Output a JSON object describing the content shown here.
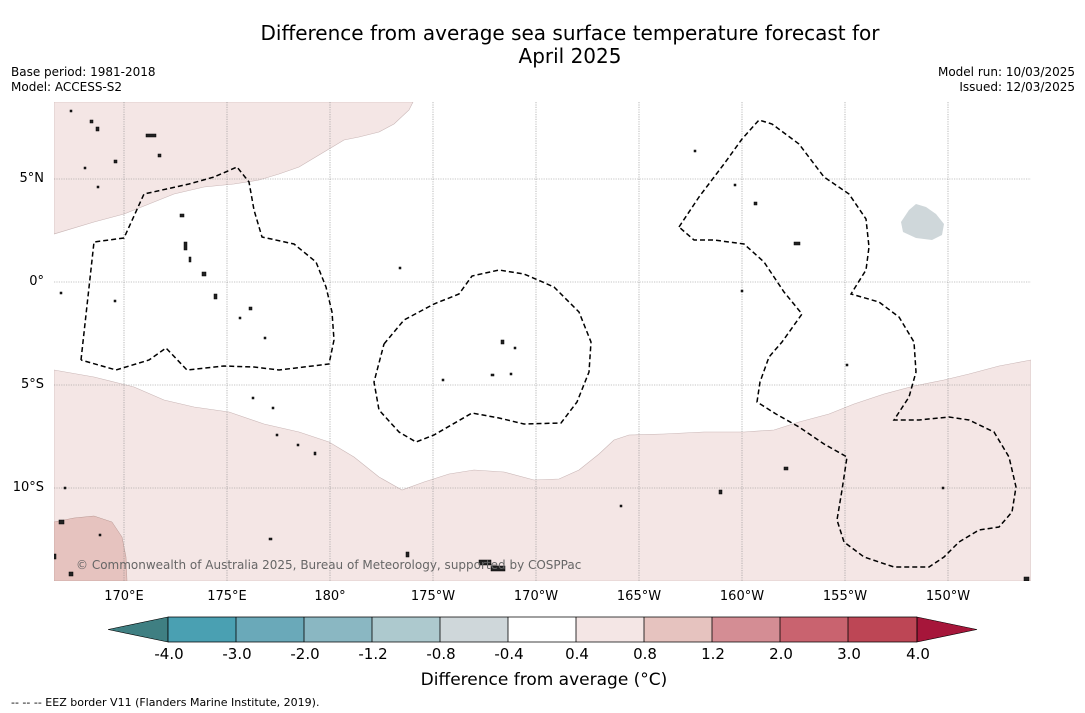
{
  "title": {
    "line1": "Difference from average sea surface temperature forecast for",
    "line2": "April 2025"
  },
  "meta_left": {
    "base_period": "Base period: 1981-2018",
    "model": "Model: ACCESS-S2"
  },
  "meta_right": {
    "model_run": "Model run: 10/03/2025",
    "issued": "Issued: 12/03/2025"
  },
  "map": {
    "lat_labels": [
      "5°N",
      "0°",
      "5°S",
      "10°S"
    ],
    "lon_labels": [
      "170°E",
      "175°E",
      "180°",
      "175°W",
      "170°W",
      "165°W",
      "160°W",
      "155°W",
      "150°W"
    ],
    "copyright": "© Commonwealth of Australia 2025, Bureau of Meteorology, supported by COSPPac",
    "colors": {
      "anomaly_0_4_to_0_8": "#f4e6e5",
      "anomaly_0_8_to_1_2": "#e6c3bf",
      "anomaly_minus_0_8_to_minus_0_4": "#cfd7da",
      "land": "#000000",
      "eez_border": "#000000"
    }
  },
  "colorbar": {
    "ticks": [
      "-4.0",
      "-3.0",
      "-2.0",
      "-1.2",
      "-0.8",
      "-0.4",
      "0.4",
      "0.8",
      "1.2",
      "2.0",
      "3.0",
      "4.0"
    ],
    "colors": [
      "#3f7f82",
      "#4aa0b2",
      "#6aa9b9",
      "#8ab7c2",
      "#adc9ce",
      "#cfd7da",
      "#ffffff",
      "#f4e6e5",
      "#e6c3bf",
      "#d48d94",
      "#c9636f",
      "#bd4655",
      "#a6163a"
    ],
    "label": "Difference from average (°C)"
  },
  "footnote": "--  --  -- EEZ border V11 (Flanders Marine Institute, 2019)."
}
